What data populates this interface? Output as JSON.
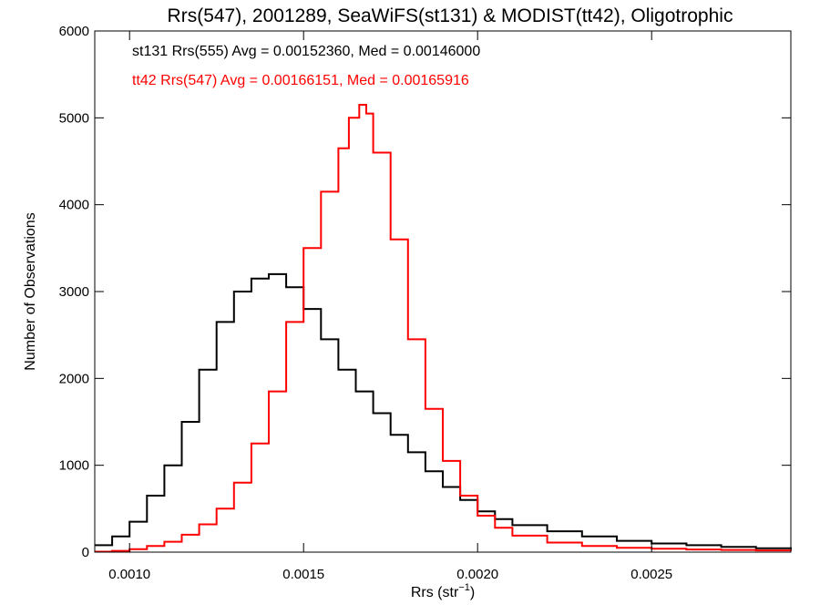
{
  "chart_data": {
    "type": "histogram",
    "title": "Rrs(547), 2001289, SeaWiFS(st131) & MODIST(tt42), Oligotrophic",
    "xlabel_main": "Rrs (str",
    "xlabel_sup": "−1",
    "xlabel_close": ")",
    "ylabel": "Number of Observations",
    "xlim": [
      0.0009,
      0.0029
    ],
    "ylim": [
      0,
      6000
    ],
    "x_ticks": [
      {
        "value": 0.001,
        "label": "0.0010"
      },
      {
        "value": 0.0015,
        "label": "0.0015"
      },
      {
        "value": 0.002,
        "label": "0.0020"
      },
      {
        "value": 0.0025,
        "label": "0.0025"
      }
    ],
    "y_ticks": [
      {
        "value": 0,
        "label": "0"
      },
      {
        "value": 1000,
        "label": "1000"
      },
      {
        "value": 2000,
        "label": "2000"
      },
      {
        "value": 3000,
        "label": "3000"
      },
      {
        "value": 4000,
        "label": "4000"
      },
      {
        "value": 5000,
        "label": "5000"
      },
      {
        "value": 6000,
        "label": "6000"
      }
    ],
    "annotations": [
      {
        "text": "st131 Rrs(555) Avg = 0.00152360, Med = 0.00146000",
        "color": "#000000"
      },
      {
        "text": "tt42 Rrs(547) Avg = 0.00166151, Med = 0.00165916",
        "color": "#ff0000"
      }
    ],
    "series": [
      {
        "color": "#000000",
        "x": [
          0.0009,
          0.00095,
          0.001,
          0.00105,
          0.0011,
          0.00115,
          0.0012,
          0.00125,
          0.0013,
          0.00135,
          0.0014,
          0.00145,
          0.0015,
          0.00155,
          0.0016,
          0.00165,
          0.0017,
          0.00175,
          0.0018,
          0.00185,
          0.0019,
          0.00195,
          0.002,
          0.00205,
          0.0021,
          0.0022,
          0.0023,
          0.0024,
          0.0025,
          0.0026,
          0.0027,
          0.0028,
          0.0029
        ],
        "y": [
          80,
          180,
          350,
          650,
          1000,
          1500,
          2100,
          2650,
          3000,
          3150,
          3200,
          3050,
          2800,
          2450,
          2100,
          1850,
          1600,
          1350,
          1150,
          930,
          750,
          600,
          470,
          380,
          310,
          240,
          180,
          130,
          100,
          80,
          60,
          45,
          35
        ]
      },
      {
        "color": "#ff0000",
        "x": [
          0.0009,
          0.00095,
          0.001,
          0.00105,
          0.0011,
          0.00115,
          0.0012,
          0.00125,
          0.0013,
          0.00135,
          0.0014,
          0.00145,
          0.0015,
          0.00155,
          0.0016,
          0.00163,
          0.00166,
          0.00168,
          0.0017,
          0.00175,
          0.0018,
          0.00185,
          0.0019,
          0.00195,
          0.002,
          0.00205,
          0.0021,
          0.0022,
          0.0023,
          0.0024,
          0.0025,
          0.0026,
          0.0027,
          0.0028,
          0.0029
        ],
        "y": [
          5,
          15,
          35,
          70,
          120,
          200,
          320,
          500,
          800,
          1250,
          1850,
          2650,
          3500,
          4150,
          4650,
          5000,
          5150,
          5050,
          4600,
          3600,
          2450,
          1650,
          1050,
          650,
          420,
          280,
          190,
          110,
          70,
          50,
          40,
          30,
          25,
          20,
          15
        ]
      }
    ]
  }
}
